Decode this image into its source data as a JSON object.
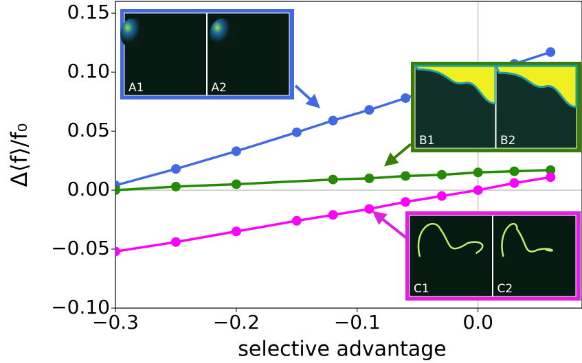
{
  "chart_data": {
    "type": "line",
    "xlabel": "selective advantage",
    "ylabel": "Δ⟨f⟩/f₀",
    "xlim": [
      -0.3,
      0.086
    ],
    "ylim": [
      -0.1,
      0.16
    ],
    "xticks": [
      {
        "value": -0.3,
        "label": "−0.3"
      },
      {
        "value": -0.2,
        "label": "−0.2"
      },
      {
        "value": -0.1,
        "label": "−0.1"
      },
      {
        "value": 0,
        "label": "0.0"
      }
    ],
    "yticks": [
      {
        "value": 0.15,
        "label": "0.15"
      },
      {
        "value": 0.1,
        "label": "0.10"
      },
      {
        "value": 0.05,
        "label": "0.05"
      },
      {
        "value": 0,
        "label": "0.00"
      },
      {
        "value": -0.05,
        "label": "−0.05"
      },
      {
        "value": -0.1,
        "label": "−0.10"
      }
    ],
    "zero_lines": true,
    "series": [
      {
        "color": "#4169e1",
        "x": [
          -0.3,
          -0.25,
          -0.2,
          -0.15,
          -0.12,
          -0.09,
          -0.06,
          -0.03,
          0,
          0.03,
          0.06
        ],
        "values": [
          0.004,
          0.018,
          0.033,
          0.049,
          0.059,
          0.068,
          0.078,
          0.088,
          0.097,
          0.107,
          0.117
        ]
      },
      {
        "color": "#228b00",
        "x": [
          -0.3,
          -0.25,
          -0.2,
          -0.12,
          -0.09,
          -0.06,
          -0.03,
          0,
          0.03,
          0.06
        ],
        "values": [
          0.0,
          0.003,
          0.005,
          0.009,
          0.01,
          0.012,
          0.013,
          0.015,
          0.016,
          0.017
        ]
      },
      {
        "color": "#ff00ff",
        "x": [
          -0.3,
          -0.25,
          -0.2,
          -0.15,
          -0.12,
          -0.09,
          -0.06,
          -0.03,
          0,
          0.03,
          0.06
        ],
        "values": [
          -0.052,
          -0.044,
          -0.035,
          -0.026,
          -0.021,
          -0.016,
          -0.01,
          -0.005,
          0.0,
          0.006,
          0.011
        ]
      }
    ],
    "insets": [
      {
        "color": "#4169e1",
        "labels": [
          "A1",
          "A2"
        ]
      },
      {
        "color": "#3a7d00",
        "labels": [
          "B1",
          "B2"
        ]
      },
      {
        "color": "#e020e0",
        "labels": [
          "C1",
          "C2"
        ]
      }
    ]
  }
}
